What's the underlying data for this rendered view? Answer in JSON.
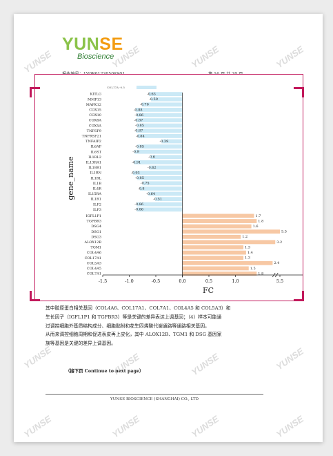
{
  "header": {
    "logo_main": "YUNSE",
    "logo_sub": "Bioscience",
    "report_no": "报告编号：1V0F01230508S01",
    "page_label": "第 16 页 共 20 页"
  },
  "watermark": "YUNSE",
  "colors": {
    "neg_bar": "#cbe9f6",
    "pos_bar": "#f7c8a4",
    "frame": "#c2185b",
    "logo_green": "#8bc34a",
    "logo_orange": "#f39c12"
  },
  "chart_data": {
    "type": "bar",
    "orientation": "horizontal",
    "xlabel": "FC",
    "ylabel": "gene_name",
    "xlim": [
      -1.5,
      6.0
    ],
    "axis_break": [
      2.5,
      4.5
    ],
    "xticks": [
      "-1.5",
      "-1.0",
      "-0.5",
      "0.0",
      "0.5",
      "1.0",
      "5.5",
      "6.0"
    ],
    "negative": {
      "categories": [
        "KITLG",
        "MMP13",
        "MAPK12",
        "COX15",
        "COX10",
        "COX8A",
        "COX5A",
        "TNFSF9",
        "TNFRSF21",
        "TNFAIP2",
        "IL6AP",
        "IL6ST",
        "IL1RL2",
        "IL13RA1",
        "IL18R1",
        "IL1RN",
        "IL1RL",
        "IL1B",
        "IL4R",
        "IL15RA",
        "IL1R1",
        "ILF2",
        "ILF3"
      ],
      "values": [
        -0.63,
        -0.59,
        -0.76,
        -0.88,
        -0.86,
        -0.87,
        -0.85,
        -0.87,
        -0.84,
        -0.39,
        -0.85,
        -0.9,
        -0.6,
        -0.91,
        -0.62,
        -0.93,
        -0.85,
        -0.75,
        -0.8,
        -0.64,
        -0.51,
        -0.86,
        -0.86
      ],
      "labels": [
        "-0.63",
        "-0.59",
        "-0.76",
        "-0.88",
        "-0.86",
        "-0.87",
        "-0.85",
        "-0.87",
        "-0.84",
        "-0.39",
        "-0.85",
        "-0.9",
        "-0.6",
        "-0.91",
        "-0.62",
        "-0.93",
        "-0.85",
        "-0.75",
        "-0.8",
        "-0.64",
        "-0.51",
        "-0.86",
        "-0.86"
      ]
    },
    "positive": {
      "categories": [
        "IGFL1P1",
        "TGFBR3",
        "DSG4",
        "DSG1",
        "DSG3",
        "ALOX12B",
        "TGM1",
        "COL4A6",
        "COL17A1",
        "COL5A3",
        "COL4A5",
        "COL7A1"
      ],
      "values": [
        1.7,
        1.8,
        1.6,
        5.5,
        1.2,
        3.2,
        1.3,
        1.4,
        1.3,
        2.4,
        1.5,
        1.8
      ],
      "labels": [
        "1.7",
        "1.8",
        "1.6",
        "5.5",
        "1.2",
        "3.2",
        "1.3",
        "1.4",
        "1.3",
        "2.4",
        "1.5",
        "1.8"
      ]
    }
  },
  "body": {
    "line1": "其中胶原蛋白相关基因（COL4A6、COL17A1、COL7A1、COL4A5 和 COL5A3）和",
    "line2": "生长因子（IGFL1P1 和 TGFBR3）等是关键的差异表达上调基因；（4）样本可能通",
    "line3": "过调控细胞外基质结构成分、细胞黏附和花生四烯酸代谢通路等通路相关基因，",
    "line4": "从而来调控细胞周期和促进表皮再上皮化，其中 ALOX12B、TGM1 和 DSG 基因家",
    "line5": "族等基因是关键的差异上调基因。"
  },
  "next_page": "（接下页 Continue to next page）",
  "footer": "YUNSE BIOSCIENCE (SHANGHAI) CO., LTD"
}
